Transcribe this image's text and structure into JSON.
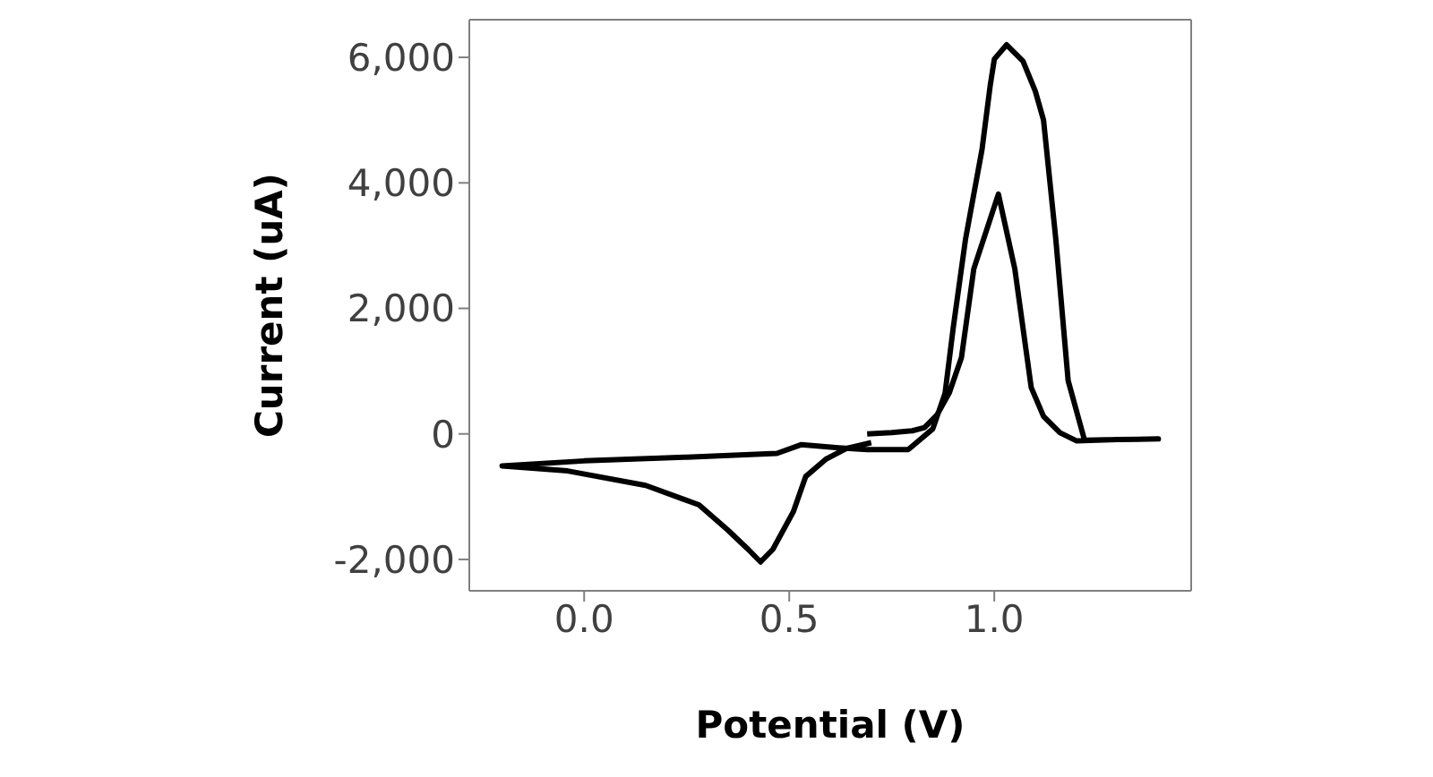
{
  "chart_data": {
    "type": "line",
    "xlabel": "Potential (V)",
    "ylabel": "Current (uA)",
    "xlim": [
      -0.28,
      1.48
    ],
    "ylim": [
      -2500,
      6600
    ],
    "xticks": [
      {
        "value": 0,
        "label": "0.0"
      },
      0.5,
      {
        "value": 1,
        "label": "1.0"
      }
    ],
    "yticks": [
      {
        "value": -2000,
        "label": "-2,000"
      },
      0,
      {
        "value": 2000,
        "label": "2,000"
      },
      {
        "value": 4000,
        "label": "4,000"
      },
      {
        "value": 6000,
        "label": "6,000"
      }
    ],
    "marker": "none",
    "line_style": "solid",
    "series": [
      {
        "color": "#000000",
        "x": [
          0.69,
          0.75,
          0.8,
          0.83,
          0.86,
          0.89,
          0.92,
          0.95,
          1.01,
          1.05,
          1.09,
          1.12,
          1.16,
          1.2,
          1.3,
          1.4,
          1.3,
          1.22,
          1.18,
          1.15,
          1.12,
          1.1,
          1.07,
          1.03,
          1.0,
          0.99,
          0.97,
          0.93,
          0.9,
          0.88,
          0.85,
          0.79,
          0.69,
          0.62,
          0.53,
          0.47,
          0.25,
          0.0,
          -0.2,
          -0.04,
          0.15,
          0.28,
          0.35,
          0.4,
          0.43,
          0.46,
          0.51,
          0.54,
          0.59,
          0.64,
          0.7
        ],
        "values": [
          0,
          20,
          50,
          100,
          300,
          650,
          1220,
          2630,
          3820,
          2630,
          740,
          280,
          20,
          -110,
          -90,
          -80,
          -90,
          -100,
          850,
          3100,
          5000,
          5460,
          5940,
          6200,
          5970,
          5550,
          4530,
          3110,
          1700,
          650,
          80,
          -250,
          -250,
          -220,
          -170,
          -310,
          -370,
          -430,
          -510,
          -590,
          -820,
          -1130,
          -1530,
          -1840,
          -2040,
          -1840,
          -1240,
          -680,
          -400,
          -230,
          -140
        ]
      }
    ]
  }
}
